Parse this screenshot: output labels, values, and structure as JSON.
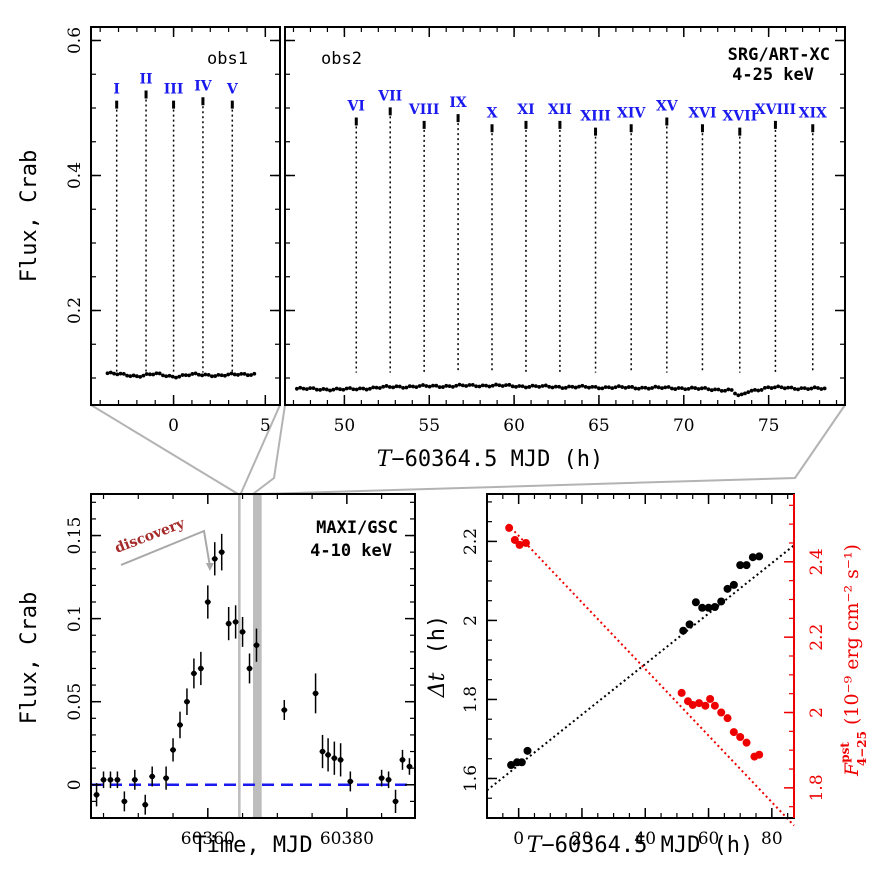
{
  "chart_data": [
    {
      "id": "top_light_curve",
      "type": "scatter",
      "title": "SRG/ART-XC",
      "energy_band": "4-25 keV",
      "xlabel_prefix": "T",
      "xlabel_rest": "−60364.5 MJD (h)",
      "ylabel": "Flux, Crab",
      "ylim": [
        0.06,
        0.62
      ],
      "yticks": [
        0.2,
        0.4,
        0.6
      ],
      "yticklabels": [
        "0.2",
        "0.4",
        "0.6"
      ],
      "panels": [
        {
          "label": "obs1",
          "xlim": [
            -4.5,
            5.8
          ],
          "xticks": [
            0,
            5
          ],
          "xticklabels": [
            "0",
            "5"
          ],
          "series": {
            "x_start": -3.6,
            "x_end": 4.4,
            "n": 46,
            "y_knots": [
              [
                -3.6,
                0.107
              ],
              [
                -2.0,
                0.103
              ],
              [
                -1.0,
                0.106
              ],
              [
                0.0,
                0.102
              ],
              [
                1.0,
                0.105
              ],
              [
                2.5,
                0.104
              ],
              [
                4.4,
                0.106
              ]
            ]
          }
        },
        {
          "label": "obs2",
          "xlim": [
            46.5,
            79.5
          ],
          "xticks": [
            50,
            55,
            60,
            65,
            70,
            75
          ],
          "xticklabels": [
            "50",
            "55",
            "60",
            "65",
            "70",
            "75"
          ],
          "series": {
            "x_start": 47.2,
            "x_end": 78.3,
            "n": 160,
            "y_knots": [
              [
                47.2,
                0.084
              ],
              [
                50.0,
                0.083
              ],
              [
                53.0,
                0.087
              ],
              [
                58.5,
                0.089
              ],
              [
                62.0,
                0.087
              ],
              [
                66.0,
                0.086
              ],
              [
                70.0,
                0.085
              ],
              [
                72.8,
                0.082
              ],
              [
                73.3,
                0.072
              ],
              [
                73.8,
                0.08
              ],
              [
                75.0,
                0.086
              ],
              [
                78.3,
                0.084
              ]
            ]
          }
        }
      ],
      "bursts": [
        {
          "label": "I",
          "t": -3.1,
          "peak": 0.505
        },
        {
          "label": "II",
          "t": -1.5,
          "peak": 0.52
        },
        {
          "label": "III",
          "t": 0.0,
          "peak": 0.505
        },
        {
          "label": "IV",
          "t": 1.6,
          "peak": 0.51
        },
        {
          "label": "V",
          "t": 3.2,
          "peak": 0.505
        },
        {
          "label": "VI",
          "t": 50.7,
          "peak": 0.48
        },
        {
          "label": "VII",
          "t": 52.7,
          "peak": 0.495
        },
        {
          "label": "VIII",
          "t": 54.7,
          "peak": 0.475
        },
        {
          "label": "IX",
          "t": 56.7,
          "peak": 0.485
        },
        {
          "label": "X",
          "t": 58.7,
          "peak": 0.47
        },
        {
          "label": "XI",
          "t": 60.7,
          "peak": 0.475
        },
        {
          "label": "XII",
          "t": 62.7,
          "peak": 0.475
        },
        {
          "label": "XIII",
          "t": 64.8,
          "peak": 0.465
        },
        {
          "label": "XIV",
          "t": 66.9,
          "peak": 0.47
        },
        {
          "label": "XV",
          "t": 69.0,
          "peak": 0.48
        },
        {
          "label": "XVI",
          "t": 71.1,
          "peak": 0.47
        },
        {
          "label": "XVII",
          "t": 73.3,
          "peak": 0.465
        },
        {
          "label": "XVIII",
          "t": 75.4,
          "peak": 0.475
        },
        {
          "label": "XIX",
          "t": 77.6,
          "peak": 0.47
        }
      ]
    },
    {
      "id": "maxi_light_curve",
      "type": "scatter",
      "title": "MAXI/GSC",
      "energy_band": "4-10 keV",
      "xlabel": "Time, MJD",
      "ylabel": "Flux, Crab",
      "xlim": [
        60343.2,
        60389.8
      ],
      "ylim": [
        -0.02,
        0.175
      ],
      "xticks": [
        60360,
        60380
      ],
      "xticklabels": [
        "60360",
        "60380"
      ],
      "yticks": [
        0,
        0.05,
        0.1,
        0.15
      ],
      "yticklabels": [
        "0",
        "0.05",
        "0.1",
        "0.15"
      ],
      "baseline": 0,
      "annotation": "discovery",
      "annotation_t": 60360.3,
      "shaded_intervals": [
        [
          60364.35,
          60364.72
        ],
        [
          60366.5,
          60367.75
        ]
      ],
      "points": [
        [
          60344,
          -0.006,
          0.007
        ],
        [
          60345,
          0.003,
          0.005
        ],
        [
          60346,
          0.003,
          0.005
        ],
        [
          60347,
          0.003,
          0.005
        ],
        [
          60348,
          -0.01,
          0.006
        ],
        [
          60349.5,
          0.003,
          0.006
        ],
        [
          60351,
          -0.012,
          0.006
        ],
        [
          60352,
          0.005,
          0.006
        ],
        [
          60354,
          0.004,
          0.007
        ],
        [
          60355,
          0.021,
          0.007
        ],
        [
          60356,
          0.036,
          0.008
        ],
        [
          60357,
          0.05,
          0.008
        ],
        [
          60358,
          0.067,
          0.009
        ],
        [
          60359,
          0.07,
          0.01
        ],
        [
          60360,
          0.11,
          0.01
        ],
        [
          60361,
          0.136,
          0.01
        ],
        [
          60362,
          0.14,
          0.011
        ],
        [
          60363,
          0.097,
          0.01
        ],
        [
          60364,
          0.098,
          0.01
        ],
        [
          60365,
          0.092,
          0.009
        ],
        [
          60366,
          0.07,
          0.009
        ],
        [
          60367,
          0.084,
          0.01
        ],
        [
          60371,
          0.045,
          0.006
        ],
        [
          60375.5,
          0.055,
          0.012
        ],
        [
          60376.5,
          0.02,
          0.01
        ],
        [
          60377.3,
          0.018,
          0.01
        ],
        [
          60378.2,
          0.016,
          0.01
        ],
        [
          60379.1,
          0.015,
          0.01
        ],
        [
          60380.5,
          0.002,
          0.006
        ],
        [
          60385,
          0.004,
          0.005
        ],
        [
          60386,
          0.003,
          0.005
        ],
        [
          60387,
          -0.01,
          0.007
        ],
        [
          60388,
          0.015,
          0.006
        ],
        [
          60389,
          0.011,
          0.005
        ]
      ]
    },
    {
      "id": "dt_fluence",
      "type": "scatter",
      "xlabel_prefix": "T",
      "xlabel_rest": "−60364.5 MJD (h)",
      "xlim": [
        -10,
        87
      ],
      "xticks": [
        0,
        20,
        40,
        60,
        80
      ],
      "xticklabels": [
        "0",
        "20",
        "40",
        "60",
        "80"
      ],
      "left_axis": {
        "label_symbol": "Δt",
        "label_unit": "(h)",
        "ylim": [
          1.5,
          2.32
        ],
        "yticks": [
          1.6,
          1.8,
          2.0,
          2.2
        ],
        "yticklabels": [
          "1.6",
          "1.8",
          "2",
          "2.2"
        ],
        "color": "#000000",
        "fit": [
          [
            -10,
            1.57
          ],
          [
            87,
            2.19
          ]
        ],
        "points": [
          [
            -2.4,
            1.634
          ],
          [
            -0.5,
            1.641
          ],
          [
            1.0,
            1.641
          ],
          [
            2.8,
            1.67
          ],
          [
            52.0,
            1.974
          ],
          [
            54.0,
            1.99
          ],
          [
            56.0,
            2.046
          ],
          [
            58.0,
            2.032
          ],
          [
            60.0,
            2.032
          ],
          [
            62.0,
            2.034
          ],
          [
            64.0,
            2.048
          ],
          [
            66.0,
            2.08
          ],
          [
            68.0,
            2.09
          ],
          [
            70.0,
            2.14
          ],
          [
            72.0,
            2.14
          ],
          [
            74.0,
            2.16
          ],
          [
            76.0,
            2.162
          ]
        ]
      },
      "right_axis": {
        "label": "F",
        "label_sub": "4−25",
        "label_sup": "pst",
        "label_unit": "(10⁻⁹ erg cm⁻² s⁻¹)",
        "ylim": [
          1.72,
          2.58
        ],
        "yticks": [
          1.8,
          2.0,
          2.2,
          2.4
        ],
        "yticklabels": [
          "1.8",
          "2",
          "2.2",
          "2.4"
        ],
        "color": "#ee0000",
        "fit": [
          [
            -3.5,
            2.5
          ],
          [
            87,
            1.7
          ]
        ],
        "points": [
          [
            -3.0,
            2.49
          ],
          [
            -1.2,
            2.458
          ],
          [
            0.3,
            2.445
          ],
          [
            2.3,
            2.45
          ],
          [
            51.5,
            2.052
          ],
          [
            53.5,
            2.03
          ],
          [
            55.0,
            2.02
          ],
          [
            57.0,
            2.025
          ],
          [
            59.0,
            2.018
          ],
          [
            60.5,
            2.036
          ],
          [
            62.0,
            2.018
          ],
          [
            64.0,
            2.0
          ],
          [
            66.0,
            1.985
          ],
          [
            68.0,
            1.948
          ],
          [
            70.0,
            1.935
          ],
          [
            72.0,
            1.92
          ],
          [
            74.5,
            1.883
          ],
          [
            76.0,
            1.888
          ]
        ]
      }
    }
  ]
}
